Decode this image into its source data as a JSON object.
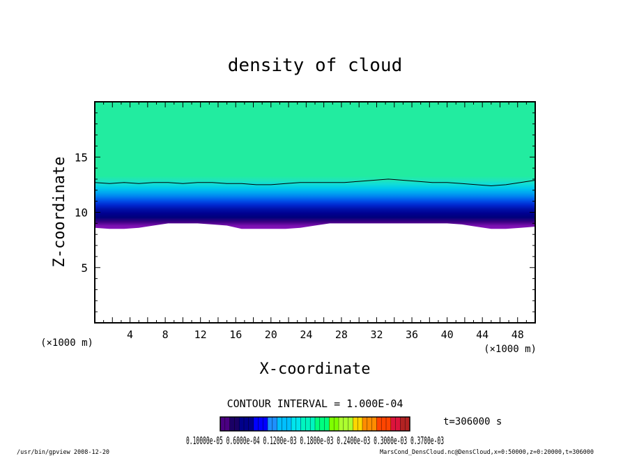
{
  "chart_data": {
    "type": "heatmap",
    "title": "density of cloud",
    "xlabel": "X-coordinate",
    "ylabel": "Z-coordinate",
    "x_unit_label": "(×1000 m)",
    "y_unit_label": "(×1000 m)",
    "xlim": [
      0,
      50
    ],
    "ylim": [
      0,
      20
    ],
    "x_ticks": [
      4,
      8,
      12,
      16,
      20,
      24,
      28,
      32,
      36,
      40,
      44,
      48
    ],
    "y_ticks": [
      5,
      10,
      15
    ],
    "cloud_base_z": [
      8.6,
      8.5,
      8.5,
      8.6,
      8.8,
      9.0,
      9.0,
      9.0,
      8.9,
      8.8,
      8.5,
      8.5,
      8.5,
      8.5,
      8.6,
      8.8,
      9.0,
      9.0,
      9.0,
      9.0,
      9.0,
      9.0,
      9.0,
      9.0,
      9.0,
      8.9,
      8.7,
      8.5,
      8.5,
      8.6,
      8.7
    ],
    "contour_line_z": [
      12.7,
      12.6,
      12.7,
      12.6,
      12.7,
      12.7,
      12.6,
      12.7,
      12.7,
      12.6,
      12.6,
      12.5,
      12.5,
      12.6,
      12.7,
      12.7,
      12.7,
      12.7,
      12.8,
      12.9,
      13.0,
      12.9,
      12.8,
      12.7,
      12.7,
      12.6,
      12.5,
      12.4,
      12.5,
      12.7,
      12.9
    ],
    "contour_interval": "CONTOUR INTERVAL = 1.000E-04",
    "time_label": "t=306000 s",
    "colorbar_labels": "0.10000e-05 0.6000e-04 0.1200e-03 0.1800e-03 0.2400e-03 0.3000e-03 0.3700e-03",
    "colorbar_colors": [
      "#4b0082",
      "#1a0066",
      "#00008b",
      "#0000ff",
      "#1e90ff",
      "#00bfff",
      "#00e5ee",
      "#00f5c0",
      "#00ff7f",
      "#7fff00",
      "#adff2f",
      "#ffd700",
      "#ff8c00",
      "#ff4500",
      "#dc143c",
      "#b22222"
    ],
    "field_colors": {
      "top": "#22eca0",
      "band": [
        "#22eca0",
        "#1fe6b8",
        "#10dcd8",
        "#00c8ec",
        "#00a8f0",
        "#0080f0",
        "#0050e8",
        "#0028d0",
        "#0010a8",
        "#000090",
        "#00007a",
        "#3a0080",
        "#7a10b0",
        "#8a18c0"
      ]
    }
  },
  "footer": {
    "program": "/usr/bin/gpview   2008-12-20",
    "source": "MarsCond_DensCloud.nc@DensCloud,x=0:50000,z=0:20000,t=306000"
  }
}
